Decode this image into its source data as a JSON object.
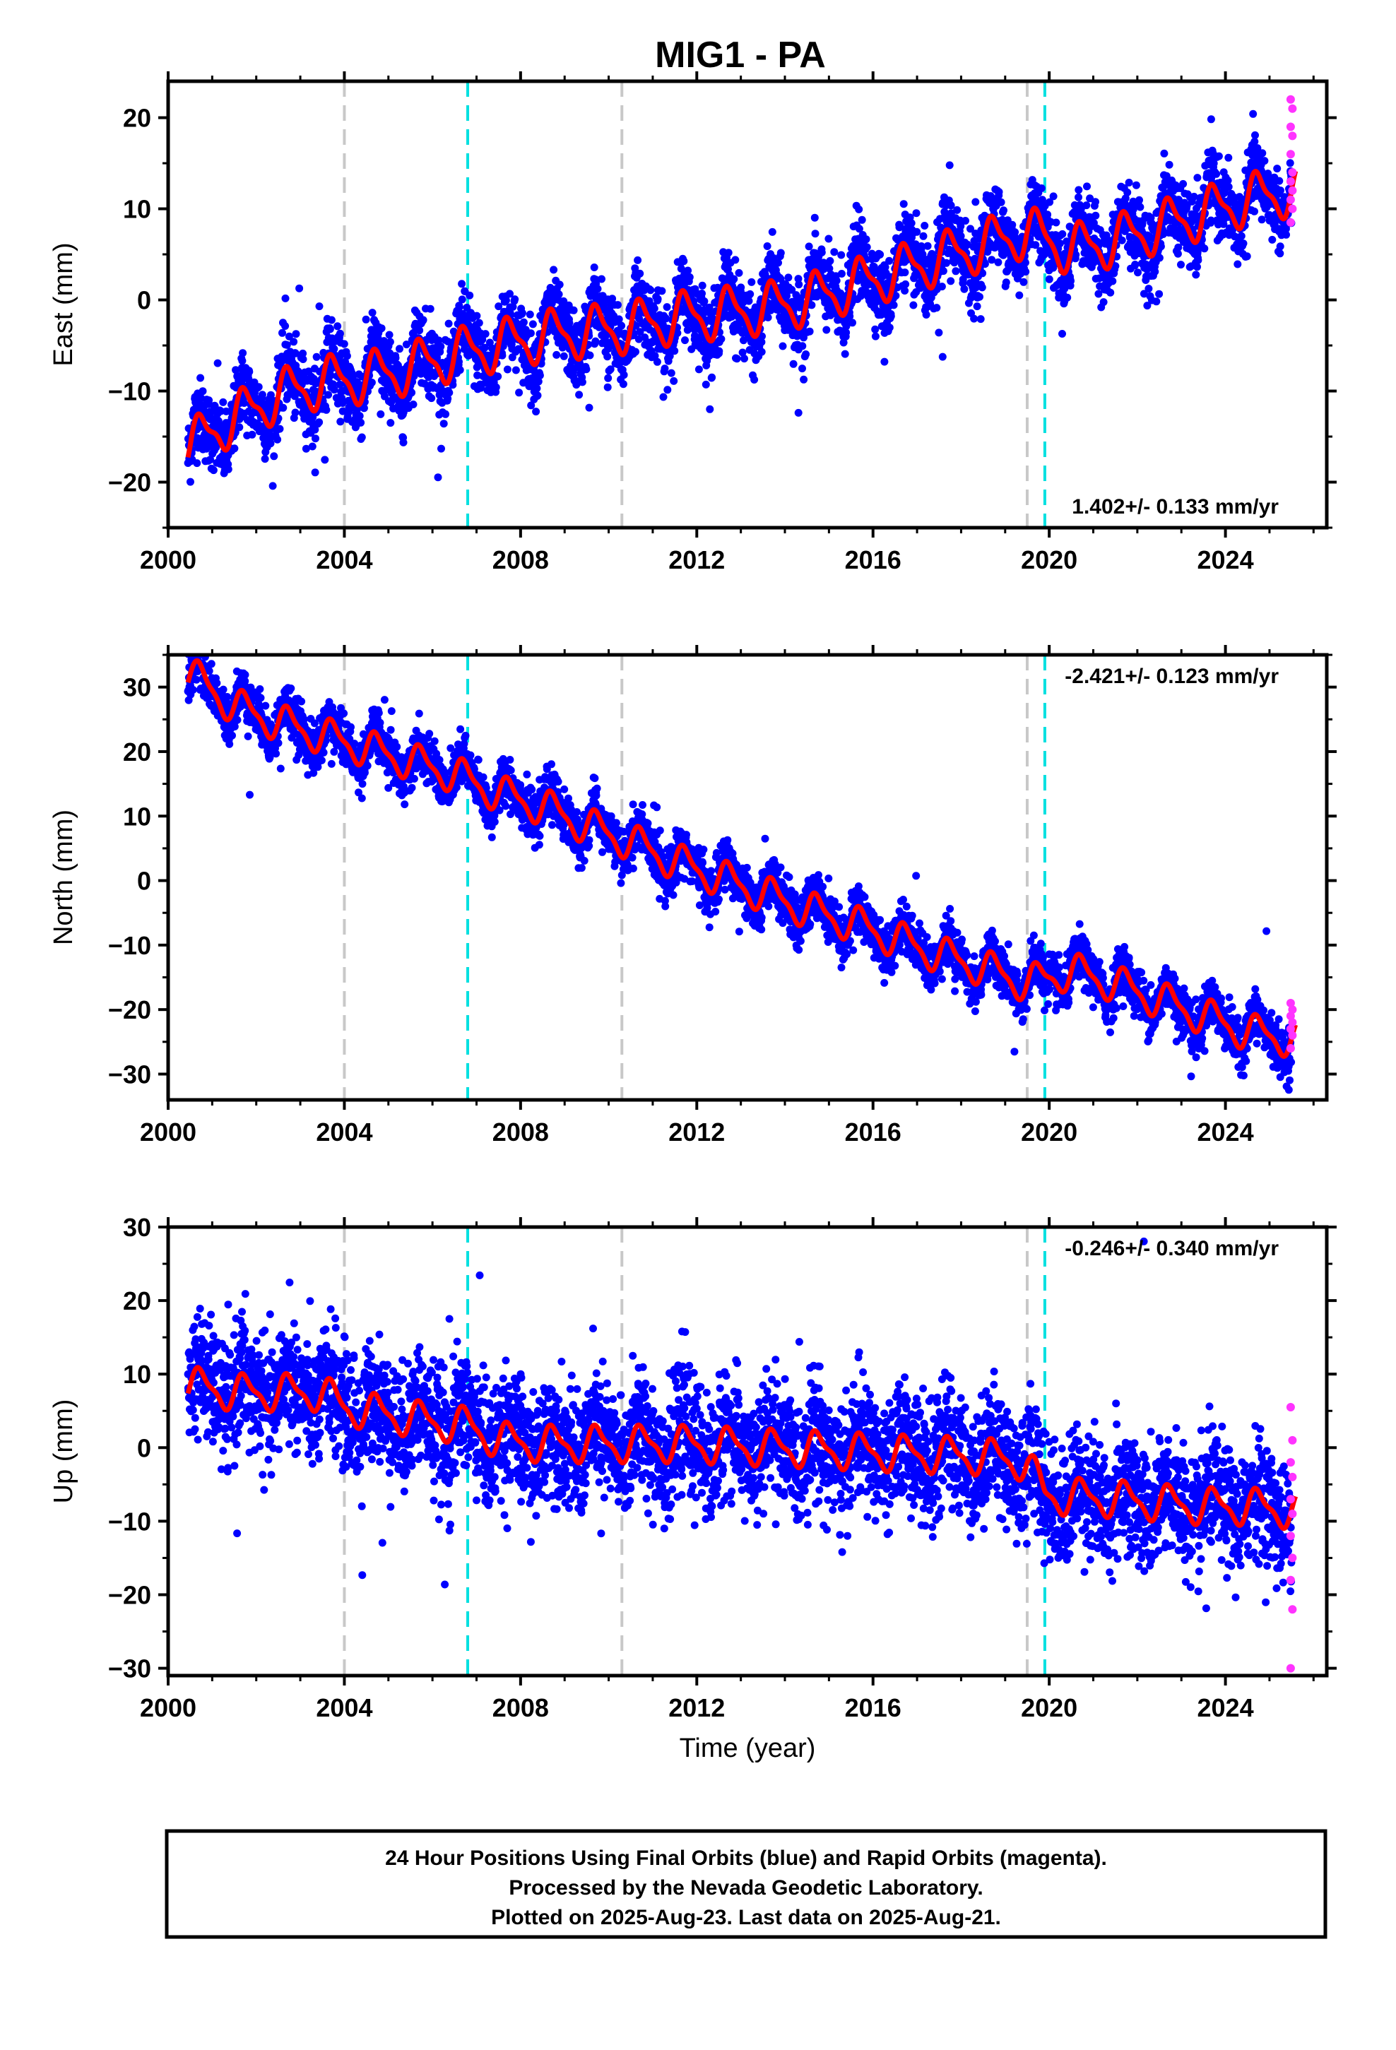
{
  "chart_data": {
    "type": "scatter",
    "title": "MIG1 - PA",
    "x_label": "Time (year)",
    "x_range": [
      2000,
      2026.3
    ],
    "x_ticks": [
      2000,
      2004,
      2008,
      2012,
      2016,
      2020,
      2024
    ],
    "grid": false,
    "legend": "none",
    "colors": {
      "final_orbits": "#0000ff",
      "rapid_orbits": "#ff33ff",
      "model": "#ff0000",
      "gray_event": "#c8c8c8",
      "cyan_event": "#00e0e0"
    },
    "event_lines": {
      "gray": [
        2004.0,
        2010.3,
        2019.5
      ],
      "cyan": [
        2006.8,
        2019.9
      ]
    },
    "panels": [
      {
        "name": "East",
        "y_label": "East (mm)",
        "y_range": [
          -25,
          24
        ],
        "y_ticks": [
          -20,
          -10,
          0,
          10,
          20
        ],
        "rate": "1.402+/- 0.133 mm/yr",
        "rate_position": "bottom-right",
        "rate_mm_per_yr": 1.402,
        "annual_amplitude_mm": 2.5,
        "scatter_mm": 2.0,
        "model_points": [
          [
            2000.5,
            -16
          ],
          [
            2001.5,
            -13
          ],
          [
            2002.5,
            -10.5
          ],
          [
            2003.5,
            -9
          ],
          [
            2004.5,
            -8.5
          ],
          [
            2005.5,
            -7.5
          ],
          [
            2006.5,
            -6
          ],
          [
            2007.5,
            -5
          ],
          [
            2008.5,
            -4
          ],
          [
            2009.5,
            -3.5
          ],
          [
            2010.5,
            -3
          ],
          [
            2011.5,
            -2
          ],
          [
            2012.5,
            -1.5
          ],
          [
            2013.5,
            -1
          ],
          [
            2014.5,
            0
          ],
          [
            2015.5,
            1.5
          ],
          [
            2016.5,
            3
          ],
          [
            2017.5,
            4.5
          ],
          [
            2018.5,
            6
          ],
          [
            2019.5,
            7.5
          ],
          [
            2020.5,
            5.5
          ],
          [
            2021.5,
            6.5
          ],
          [
            2022.5,
            8
          ],
          [
            2023.5,
            9.5
          ],
          [
            2024.5,
            11
          ],
          [
            2025.5,
            12
          ]
        ],
        "rapid_points": [
          8.5,
          10,
          11,
          12,
          13,
          14,
          16,
          18,
          19,
          21,
          22
        ]
      },
      {
        "name": "North",
        "y_label": "North (mm)",
        "y_range": [
          -34,
          35
        ],
        "y_ticks": [
          -30,
          -20,
          -10,
          0,
          10,
          20,
          30
        ],
        "rate": "-2.421+/- 0.123 mm/yr",
        "rate_position": "top-right",
        "rate_mm_per_yr": -2.421,
        "annual_amplitude_mm": 2.5,
        "scatter_mm": 1.8,
        "model_points": [
          [
            2000.5,
            32
          ],
          [
            2001.5,
            27
          ],
          [
            2002.5,
            24.5
          ],
          [
            2003.5,
            22.5
          ],
          [
            2004.5,
            20.5
          ],
          [
            2005.5,
            18.5
          ],
          [
            2006.5,
            16.5
          ],
          [
            2007.5,
            13.5
          ],
          [
            2008.5,
            11.5
          ],
          [
            2009.5,
            8.5
          ],
          [
            2010.5,
            6
          ],
          [
            2011.5,
            3
          ],
          [
            2012.5,
            0.5
          ],
          [
            2013.5,
            -2
          ],
          [
            2014.5,
            -4.5
          ],
          [
            2015.5,
            -6.5
          ],
          [
            2016.5,
            -9
          ],
          [
            2017.5,
            -11.5
          ],
          [
            2018.5,
            -13.5
          ],
          [
            2019.5,
            -16
          ],
          [
            2020.5,
            -14
          ],
          [
            2021.5,
            -16
          ],
          [
            2022.5,
            -18.5
          ],
          [
            2023.5,
            -21
          ],
          [
            2024.5,
            -23.5
          ],
          [
            2025.5,
            -24.5
          ]
        ],
        "rapid_points": [
          -26,
          -24,
          -23,
          -22,
          -21,
          -20,
          -19
        ]
      },
      {
        "name": "Up",
        "y_label": "Up (mm)",
        "y_range": [
          -31,
          30
        ],
        "y_ticks": [
          -30,
          -20,
          -10,
          0,
          10,
          20,
          30
        ],
        "rate": "-0.246+/- 0.340 mm/yr",
        "rate_position": "top-right",
        "rate_mm_per_yr": -0.246,
        "annual_amplitude_mm": 2.2,
        "scatter_mm": 4.0,
        "model_points": [
          [
            2000.5,
            8.5
          ],
          [
            2001.5,
            7.5
          ],
          [
            2002.5,
            7.5
          ],
          [
            2003.5,
            7.5
          ],
          [
            2004.0,
            5.5
          ],
          [
            2005.0,
            4.5
          ],
          [
            2006.0,
            3.5
          ],
          [
            2006.8,
            3
          ],
          [
            2007.5,
            1
          ],
          [
            2008.5,
            0.5
          ],
          [
            2009.5,
            0.5
          ],
          [
            2010.5,
            0.5
          ],
          [
            2011.5,
            0.5
          ],
          [
            2012.5,
            0.3
          ],
          [
            2013.5,
            0
          ],
          [
            2014.5,
            -0.2
          ],
          [
            2015.5,
            -0.5
          ],
          [
            2016.5,
            -0.8
          ],
          [
            2017.5,
            -1
          ],
          [
            2018.5,
            -1.2
          ],
          [
            2019.5,
            -2
          ],
          [
            2019.9,
            -6.5
          ],
          [
            2021.5,
            -7
          ],
          [
            2022.5,
            -7.5
          ],
          [
            2023.5,
            -8
          ],
          [
            2024.5,
            -8
          ],
          [
            2025.5,
            -8.5
          ]
        ],
        "rapid_points": [
          -30,
          -22,
          -18,
          -15,
          -12,
          -9,
          -7,
          -4,
          -2,
          1,
          5.5
        ]
      }
    ]
  },
  "caption": {
    "line1": "24 Hour Positions Using Final Orbits (blue) and Rapid Orbits (magenta).",
    "line2": "Processed by the Nevada Geodetic Laboratory.",
    "line3": "Plotted on 2025-Aug-23. Last data on 2025-Aug-21."
  }
}
